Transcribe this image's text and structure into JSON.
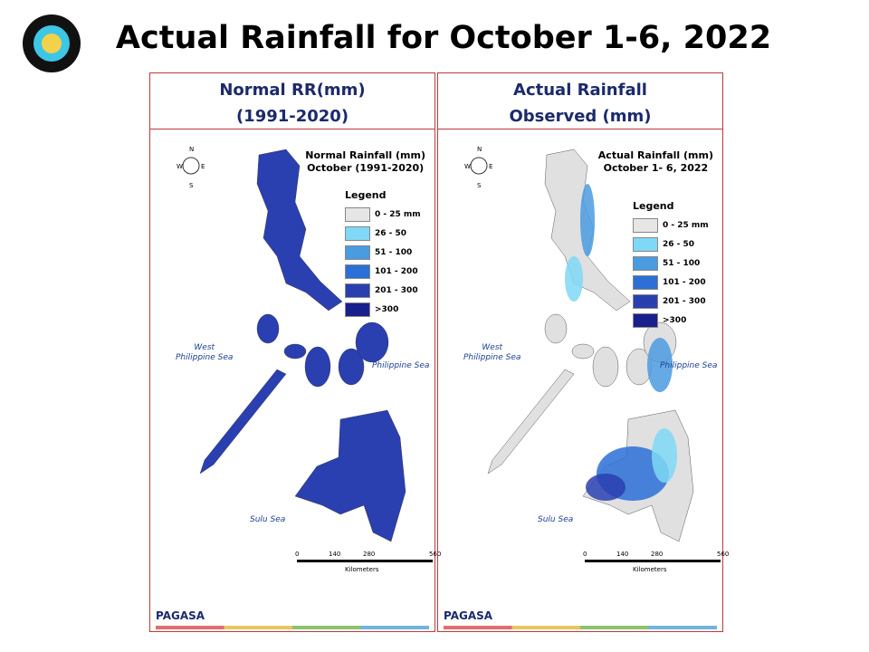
{
  "title": "Actual Rainfall for October 1-6, 2022",
  "panels": [
    {
      "header": [
        "Normal RR(mm)",
        "(1991-2020)"
      ],
      "map_title": [
        "Normal Rainfall (mm)",
        "October (1991-2020)"
      ],
      "land_color": "#2a3fb0",
      "legend_title": "Legend",
      "legend": [
        {
          "label": "0 - 25 mm",
          "color": "#e6e6e6"
        },
        {
          "label": "26 - 50",
          "color": "#7fd8f6"
        },
        {
          "label": "51 - 100",
          "color": "#4a9be0"
        },
        {
          "label": "101 - 200",
          "color": "#2c6fd6"
        },
        {
          "label": "201 - 300",
          "color": "#2a3fb0"
        },
        {
          "label": ">300",
          "color": "#1a1f8e"
        }
      ],
      "seas": {
        "west": [
          "West",
          "Philippine Sea"
        ],
        "east": "Philippine Sea",
        "south": "Sulu Sea"
      },
      "compass": [
        "N",
        "S",
        "W",
        "E"
      ],
      "scale": [
        "0",
        "140",
        "280",
        "560"
      ],
      "scale_unit": "Kilometers",
      "logo": "PAGASA"
    },
    {
      "header": [
        "Actual Rainfall",
        "Observed (mm)"
      ],
      "map_title": [
        "Actual Rainfall (mm)",
        "October 1- 6, 2022"
      ],
      "land_color": "#e0e0e0",
      "legend_title": "Legend",
      "legend": [
        {
          "label": "0 - 25 mm",
          "color": "#e6e6e6"
        },
        {
          "label": "26 - 50",
          "color": "#7fd8f6"
        },
        {
          "label": "51 - 100",
          "color": "#4a9be0"
        },
        {
          "label": "101 - 200",
          "color": "#2c6fd6"
        },
        {
          "label": "201 - 300",
          "color": "#2a3fb0"
        },
        {
          "label": ">300",
          "color": "#1a1f8e"
        }
      ],
      "seas": {
        "west": [
          "West",
          "Philippine Sea"
        ],
        "east": "Philippine Sea",
        "south": "Sulu Sea"
      },
      "compass": [
        "N",
        "S",
        "W",
        "E"
      ],
      "scale": [
        "0",
        "140",
        "280",
        "560"
      ],
      "scale_unit": "Kilometers",
      "logo": "PAGASA"
    }
  ]
}
